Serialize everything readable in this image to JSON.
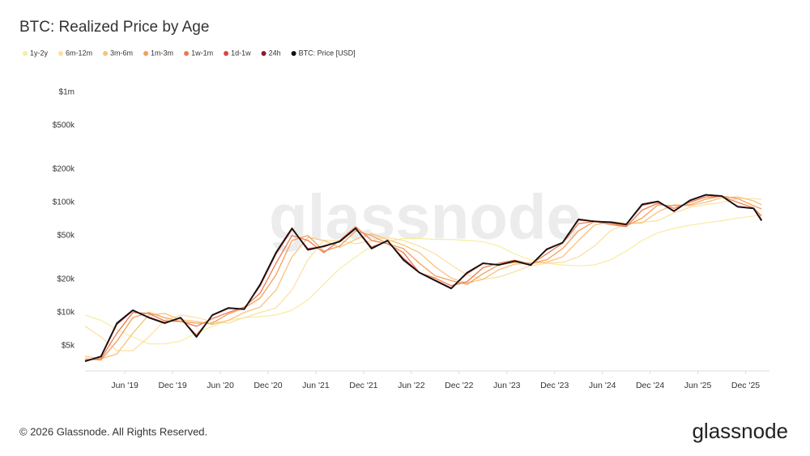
{
  "chart_data": {
    "type": "line",
    "title": "BTC: Realized Price by Age",
    "x": [
      "2019-01",
      "2019-03",
      "2019-05",
      "2019-07",
      "2019-09",
      "2019-11",
      "2020-01",
      "2020-03",
      "2020-05",
      "2020-07",
      "2020-09",
      "2020-11",
      "2021-01",
      "2021-03",
      "2021-05",
      "2021-07",
      "2021-09",
      "2021-11",
      "2022-01",
      "2022-03",
      "2022-05",
      "2022-07",
      "2022-09",
      "2022-11",
      "2023-01",
      "2023-03",
      "2023-05",
      "2023-07",
      "2023-09",
      "2023-11",
      "2024-01",
      "2024-03",
      "2024-05",
      "2024-07",
      "2024-09",
      "2024-11",
      "2025-01",
      "2025-03",
      "2025-05",
      "2025-07",
      "2025-09",
      "2025-11",
      "2026-01",
      "2026-02"
    ],
    "xlim": [
      "2019-01",
      "2026-03"
    ],
    "xticks": [
      {
        "value": "2019-06",
        "label": "Jun '19"
      },
      {
        "value": "2019-12",
        "label": "Dec '19"
      },
      {
        "value": "2020-06",
        "label": "Jun '20"
      },
      {
        "value": "2020-12",
        "label": "Dec '20"
      },
      {
        "value": "2021-06",
        "label": "Jun '21"
      },
      {
        "value": "2021-12",
        "label": "Dec '21"
      },
      {
        "value": "2022-06",
        "label": "Jun '22"
      },
      {
        "value": "2022-12",
        "label": "Dec '22"
      },
      {
        "value": "2023-06",
        "label": "Jun '23"
      },
      {
        "value": "2023-12",
        "label": "Dec '23"
      },
      {
        "value": "2024-06",
        "label": "Jun '24"
      },
      {
        "value": "2024-12",
        "label": "Dec '24"
      },
      {
        "value": "2025-06",
        "label": "Jun '25"
      },
      {
        "value": "2025-12",
        "label": "Dec '25"
      }
    ],
    "log_scale": true,
    "ylim": [
      2950,
      1260000
    ],
    "yticks": [
      {
        "value": 5000,
        "label": "$5k"
      },
      {
        "value": 10000,
        "label": "$10k"
      },
      {
        "value": 20000,
        "label": "$20k"
      },
      {
        "value": 50000,
        "label": "$50k"
      },
      {
        "value": 100000,
        "label": "$100k"
      },
      {
        "value": 200000,
        "label": "$200k"
      },
      {
        "value": 500000,
        "label": "$500k"
      },
      {
        "value": 1000000,
        "label": "$1m"
      }
    ],
    "series": [
      {
        "name": "1y-2y",
        "color": "#f6eda0",
        "width": 1.2,
        "values": [
          9500,
          8500,
          7000,
          6000,
          5200,
          5200,
          5500,
          6500,
          7500,
          8500,
          9000,
          9200,
          9500,
          10500,
          13000,
          18000,
          25000,
          32000,
          40000,
          44000,
          47000,
          47000,
          46000,
          46000,
          45000,
          44000,
          40000,
          34000,
          30000,
          28000,
          27000,
          26500,
          27000,
          30000,
          36000,
          45000,
          53000,
          58000,
          62000,
          65000,
          68000,
          72000,
          75000,
          78000
        ]
      },
      {
        "name": "6m-12m",
        "color": "#fbdfa0",
        "width": 1.2,
        "values": [
          7500,
          6000,
          4500,
          4500,
          6000,
          8500,
          9500,
          9000,
          8300,
          8000,
          9000,
          10000,
          11000,
          16000,
          30000,
          45000,
          45000,
          42000,
          45000,
          48000,
          45000,
          40000,
          34000,
          27000,
          22000,
          20000,
          21000,
          23500,
          26500,
          28000,
          28500,
          32000,
          40000,
          55000,
          64000,
          66000,
          68000,
          80000,
          90000,
          95000,
          100000,
          108000,
          108000,
          106000
        ]
      },
      {
        "name": "3m-6m",
        "color": "#f8c27a",
        "width": 1.3,
        "values": [
          4000,
          3800,
          4200,
          6500,
          9500,
          9800,
          8600,
          8300,
          7800,
          8500,
          10000,
          11200,
          16000,
          32000,
          48000,
          45000,
          39000,
          46000,
          52000,
          46000,
          41000,
          35000,
          26000,
          20500,
          18500,
          20000,
          24500,
          27500,
          28000,
          28500,
          32000,
          45000,
          62000,
          67000,
          64000,
          65000,
          82000,
          95000,
          93000,
          100000,
          110000,
          112000,
          103000,
          95000
        ]
      },
      {
        "name": "1m-3m",
        "color": "#f3a05c",
        "width": 1.3,
        "values": [
          3800,
          3700,
          5500,
          9000,
          10000,
          9000,
          8300,
          8000,
          8000,
          9700,
          11000,
          13500,
          22000,
          45000,
          50000,
          36000,
          40000,
          55000,
          50000,
          42000,
          38000,
          28000,
          21500,
          19500,
          18000,
          22500,
          27000,
          28500,
          28000,
          30000,
          38000,
          55000,
          67000,
          65000,
          61000,
          72000,
          95000,
          93000,
          95000,
          107000,
          114000,
          108000,
          93000,
          87000
        ]
      },
      {
        "name": "1w-1m",
        "color": "#ec7a4e",
        "width": 1.3,
        "values": [
          3700,
          3800,
          6500,
          10000,
          9800,
          8400,
          8300,
          7500,
          8800,
          10000,
          11200,
          15000,
          28000,
          50000,
          45000,
          35000,
          45000,
          60000,
          45000,
          42000,
          35000,
          23000,
          20500,
          17500,
          19000,
          25500,
          28000,
          29800,
          27500,
          34000,
          42500,
          64000,
          67000,
          63000,
          60000,
          85000,
          98000,
          88000,
          100000,
          112000,
          113000,
          100000,
          89000,
          75000
        ]
      },
      {
        "name": "1d-1w",
        "color": "#d7463e",
        "width": 1.4,
        "values": [
          3650,
          3950,
          7800,
          10400,
          9100,
          8100,
          8900,
          6200,
          9400,
          10900,
          10800,
          17500,
          34000,
          57000,
          38000,
          39500,
          44500,
          58500,
          39000,
          44500,
          31000,
          23200,
          19700,
          16700,
          22500,
          27800,
          27200,
          29200,
          27000,
          37000,
          43000,
          69000,
          67500,
          65500,
          62500,
          94000,
          101000,
          84000,
          103000,
          116000,
          114000,
          92000,
          88000,
          70000
        ]
      },
      {
        "name": "24h",
        "color": "#8a1a2c",
        "width": 1.4,
        "values": [
          3620,
          4000,
          7950,
          10500,
          9000,
          8000,
          9000,
          6050,
          9500,
          11000,
          10700,
          17900,
          35000,
          58000,
          37000,
          40000,
          44000,
          58000,
          38000,
          45000,
          30000,
          23000,
          19500,
          16500,
          23000,
          28000,
          27000,
          29300,
          26900,
          37500,
          43000,
          70000,
          67000,
          66000,
          63000,
          96000,
          102000,
          83000,
          104000,
          117000,
          114000,
          91000,
          88000,
          68500
        ]
      },
      {
        "name": "BTC: Price [USD]",
        "color": "#111111",
        "width": 1.8,
        "values": [
          3600,
          4000,
          8000,
          10500,
          9000,
          8000,
          9000,
          6000,
          9500,
          11000,
          10700,
          18000,
          35000,
          58000,
          37000,
          40000,
          44000,
          58000,
          38000,
          45000,
          30000,
          23000,
          19500,
          16500,
          23000,
          28000,
          27000,
          29300,
          26900,
          37500,
          43000,
          70000,
          67000,
          66000,
          63000,
          96000,
          102000,
          83000,
          104000,
          117000,
          114000,
          91000,
          88000,
          68000
        ]
      }
    ]
  },
  "watermark": "glassnode",
  "footer": "© 2026 Glassnode. All Rights Reserved.",
  "logo": "glassnode"
}
